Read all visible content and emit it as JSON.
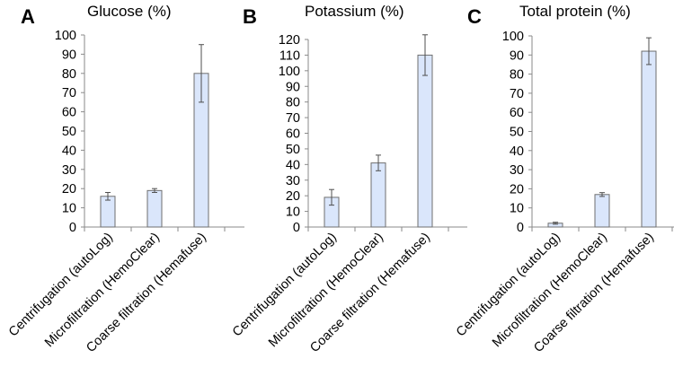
{
  "colors": {
    "bar_fill": "#dae6fb",
    "bar_stroke": "#6f6f6f",
    "axis": "#8a8a8a",
    "error_bar": "#4f4f4f"
  },
  "chart_data": [
    {
      "type": "bar",
      "panel_label": "A",
      "title": "Glucose (%)",
      "categories": [
        "Centrifugation (autoLog)",
        "Microfiltration (HemoClear)",
        "Coarse filtration (Hemafuse)"
      ],
      "values": [
        16,
        19,
        80
      ],
      "errors": [
        2,
        1,
        15
      ],
      "ylim": [
        0,
        100
      ],
      "yticks": [
        0,
        10,
        20,
        30,
        40,
        50,
        60,
        70,
        80,
        90,
        100
      ],
      "xlabel": "",
      "ylabel": "",
      "grid": false
    },
    {
      "type": "bar",
      "panel_label": "B",
      "title": "Potassium (%)",
      "categories": [
        "Centrifugation (autoLog)",
        "Microfiltration (HemoClear)",
        "Coarse filtration (Hemafuse)"
      ],
      "values": [
        19,
        41,
        110
      ],
      "errors": [
        5,
        5,
        13
      ],
      "ylim": [
        0,
        120
      ],
      "yticks": [
        0,
        10,
        20,
        30,
        40,
        50,
        60,
        70,
        80,
        90,
        100,
        110,
        120
      ],
      "xlabel": "",
      "ylabel": "",
      "grid": false
    },
    {
      "type": "bar",
      "panel_label": "C",
      "title": "Total protein (%)",
      "categories": [
        "Centrifugation (autoLog)",
        "Microfiltration (HemoClear)",
        "Coarse filtration (Hemafuse)"
      ],
      "values": [
        2,
        17,
        92
      ],
      "errors": [
        0.5,
        1,
        7
      ],
      "ylim": [
        0,
        100
      ],
      "yticks": [
        0,
        10,
        20,
        30,
        40,
        50,
        60,
        70,
        80,
        90,
        100
      ],
      "xlabel": "",
      "ylabel": "",
      "grid": false
    }
  ]
}
